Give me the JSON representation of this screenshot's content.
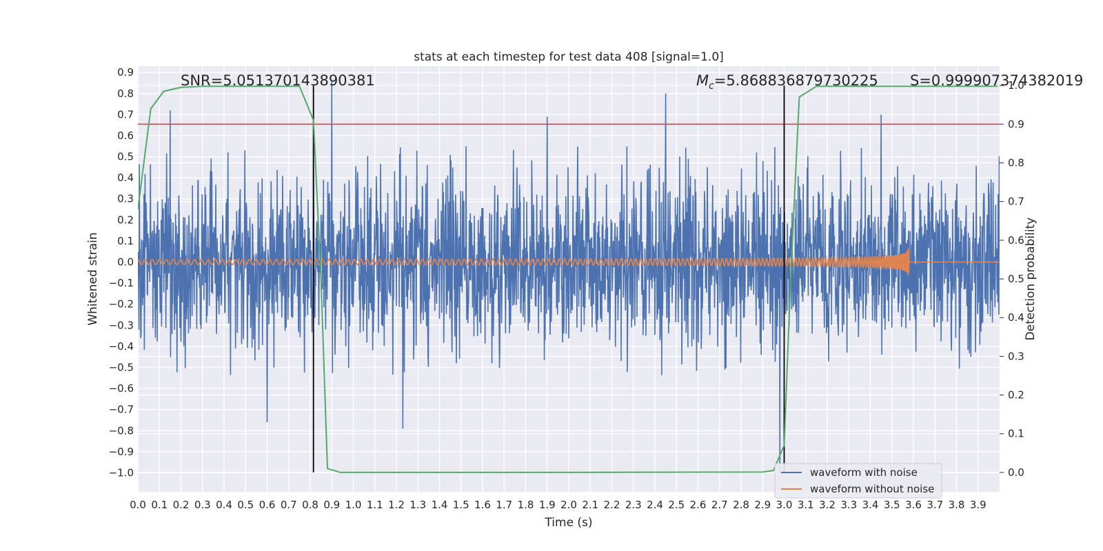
{
  "chart_data": {
    "type": "line",
    "title": "stats at each timestep for test data 408 [signal=1.0]",
    "xlabel": "Time (s)",
    "ylabel": "Whitened strain",
    "y2label": "Detection probability",
    "xlim": [
      0.0,
      4.0
    ],
    "ylim": [
      -1.09,
      0.93
    ],
    "y2lim": [
      -0.05,
      1.05
    ],
    "x_ticks": [
      "0.0",
      "0.1",
      "0.2",
      "0.3",
      "0.4",
      "0.5",
      "0.6",
      "0.7",
      "0.8",
      "0.9",
      "1.0",
      "1.1",
      "1.2",
      "1.3",
      "1.4",
      "1.5",
      "1.6",
      "1.7",
      "1.8",
      "1.9",
      "2.0",
      "2.1",
      "2.2",
      "2.3",
      "2.4",
      "2.5",
      "2.6",
      "2.7",
      "2.8",
      "2.9",
      "3.0",
      "3.1",
      "3.2",
      "3.3",
      "3.4",
      "3.5",
      "3.6",
      "3.7",
      "3.8",
      "3.9"
    ],
    "y_ticks": [
      "0.9",
      "0.8",
      "0.7",
      "0.6",
      "0.5",
      "0.4",
      "0.3",
      "0.2",
      "0.1",
      "0.0",
      "−0.1",
      "−0.2",
      "−0.3",
      "−0.4",
      "−0.5",
      "−0.6",
      "−0.7",
      "−0.8",
      "−0.9",
      "−1.0"
    ],
    "y2_ticks": [
      "1.0",
      "0.9",
      "0.8",
      "0.7",
      "0.6",
      "0.5",
      "0.4",
      "0.3",
      "0.2",
      "0.1",
      "0.0"
    ],
    "grid": true,
    "legend_position": "bottom-right",
    "annotations": {
      "snr": "SNR=5.051370143890381",
      "mc_symbol": "M",
      "mc_sub": "c",
      "mc_value": "=5.868836879730225",
      "s": "S=0.999907374382019"
    },
    "vertical_lines_x": [
      0.815,
      3.0
    ],
    "threshold_y2": 0.9,
    "series": [
      {
        "name": "waveform with noise",
        "color": "#4c72b0",
        "axis": "left",
        "kind": "noise",
        "amplitude_envelope": 0.55,
        "peaks": [
          [
            0.9,
            0.86
          ],
          [
            0.15,
            0.72
          ],
          [
            1.9,
            0.69
          ],
          [
            2.45,
            0.8
          ],
          [
            3.45,
            0.7
          ],
          [
            2.98,
            -1.0
          ],
          [
            0.6,
            -0.76
          ],
          [
            1.23,
            -0.79
          ]
        ]
      },
      {
        "name": "waveform without noise",
        "color": "#dd8452",
        "axis": "left",
        "kind": "chirp",
        "f_start_hz": 30,
        "t_merger": 3.58,
        "amplitude_start": 0.012,
        "amplitude_peak": 0.12
      },
      {
        "name": "detection probability",
        "color": "#55a868",
        "axis": "right",
        "kind": "line",
        "x": [
          0.0,
          0.06,
          0.12,
          0.2,
          0.3,
          0.5,
          0.75,
          0.815,
          0.85,
          0.88,
          0.94,
          1.2,
          2.0,
          2.9,
          2.95,
          3.0,
          3.03,
          3.07,
          3.15,
          3.3,
          3.6,
          3.99
        ],
        "y": [
          0.68,
          0.94,
          0.985,
          0.995,
          0.998,
          0.998,
          0.998,
          0.91,
          0.5,
          0.01,
          0.0,
          0.0,
          0.0,
          0.001,
          0.005,
          0.07,
          0.5,
          0.97,
          0.998,
          0.998,
          0.998,
          0.998
        ]
      },
      {
        "name": "threshold",
        "color": "#c44e52",
        "axis": "right",
        "kind": "hline",
        "y": 0.9
      }
    ]
  }
}
